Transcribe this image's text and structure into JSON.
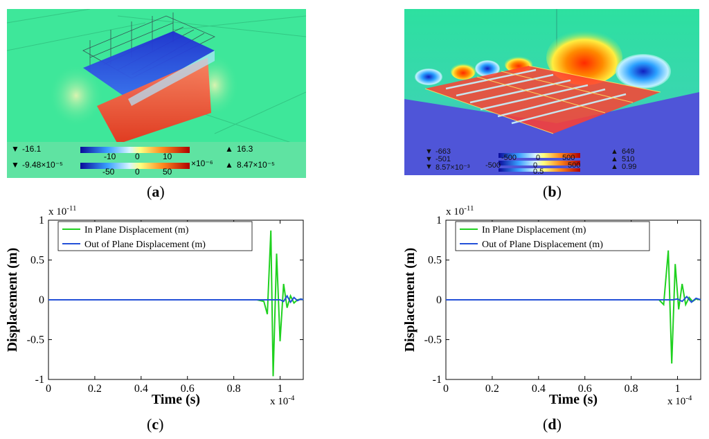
{
  "captions": {
    "a": "a",
    "b": "b",
    "c": "c",
    "d": "d"
  },
  "panel_a": {
    "legend_row1": {
      "min": "-16.1",
      "ticks": [
        "-10",
        "0",
        "10"
      ],
      "max": "16.3"
    },
    "legend_row2": {
      "min": "-9.48×10⁻⁵",
      "ticks": [
        "-50",
        "0",
        "50"
      ],
      "scale": "×10⁻⁶",
      "max": "8.47×10⁻⁵"
    }
  },
  "panel_b": {
    "legend_row1": {
      "min": "-663",
      "ticks": [
        "-500",
        "0",
        "500"
      ],
      "max": "649"
    },
    "legend_row2": {
      "min": "-501",
      "ticks": [
        "-500",
        "0",
        "500"
      ],
      "max": "510"
    },
    "legend_row3": {
      "min": "8.57×10⁻³",
      "ticks": [
        "0.5"
      ],
      "max": "0.99"
    }
  },
  "colors": {
    "in_plane": "#1fd11f",
    "out_of_plane": "#2350d8",
    "field_bg": "#3ee79a"
  },
  "chart_data": [
    {
      "id": "c",
      "type": "line",
      "title": "",
      "xlabel": "Time (s)",
      "ylabel": "Displacement (m)",
      "x_exponent": "x 10",
      "x_exponent_power": "-4",
      "y_exponent": "x 10",
      "y_exponent_power": "-11",
      "xlim": [
        0,
        1.1
      ],
      "ylim": [
        -1,
        1
      ],
      "xticks": [
        0,
        0.2,
        0.4,
        0.6,
        0.8,
        1
      ],
      "xtick_labels": [
        "0",
        "0.2",
        "0.4",
        "0.6",
        "0.8",
        "1"
      ],
      "yticks": [
        -1,
        -0.5,
        0,
        0.5,
        1
      ],
      "ytick_labels": [
        "-1",
        "-0.5",
        "0",
        "0.5",
        "1"
      ],
      "legend_position": "top-left",
      "series": [
        {
          "name": "In Plane Displacement (m)",
          "color_key": "in_plane",
          "x": [
            0,
            0.9,
            0.93,
            0.945,
            0.96,
            0.97,
            0.985,
            1.0,
            1.015,
            1.03,
            1.045,
            1.06,
            1.075,
            1.09,
            1.1
          ],
          "y": [
            0,
            0,
            -0.02,
            -0.18,
            0.87,
            -0.96,
            0.58,
            -0.52,
            0.2,
            -0.1,
            0.05,
            -0.04,
            0.0,
            0.01,
            0.0
          ]
        },
        {
          "name": "Out of Plane Displacement (m)",
          "color_key": "out_of_plane",
          "x": [
            0,
            1.0,
            1.015,
            1.03,
            1.045,
            1.06,
            1.075,
            1.09,
            1.1
          ],
          "y": [
            0,
            0,
            -0.02,
            0.05,
            -0.03,
            0.03,
            -0.01,
            0.01,
            0.0
          ]
        }
      ]
    },
    {
      "id": "d",
      "type": "line",
      "title": "",
      "xlabel": "Time (s)",
      "ylabel": "Displacement (m)",
      "x_exponent": "x 10",
      "x_exponent_power": "-4",
      "y_exponent": "x 10",
      "y_exponent_power": "-11",
      "xlim": [
        0,
        1.1
      ],
      "ylim": [
        -1,
        1
      ],
      "xticks": [
        0,
        0.2,
        0.4,
        0.6,
        0.8,
        1
      ],
      "xtick_labels": [
        "0",
        "0.2",
        "0.4",
        "0.6",
        "0.8",
        "1"
      ],
      "yticks": [
        -1,
        -0.5,
        0,
        0.5,
        1
      ],
      "ytick_labels": [
        "-1",
        "-0.5",
        "0",
        "0.5",
        "1"
      ],
      "legend_position": "top-left",
      "series": [
        {
          "name": "In Plane Displacement (m)",
          "color_key": "in_plane",
          "x": [
            0,
            0.92,
            0.94,
            0.96,
            0.975,
            0.99,
            1.005,
            1.02,
            1.035,
            1.05,
            1.065,
            1.08,
            1.1
          ],
          "y": [
            0,
            0,
            -0.06,
            0.62,
            -0.8,
            0.45,
            -0.12,
            0.2,
            -0.06,
            0.03,
            -0.02,
            0.01,
            0.0
          ]
        },
        {
          "name": "Out of Plane Displacement (m)",
          "color_key": "out_of_plane",
          "x": [
            0,
            0.98,
            1.0,
            1.02,
            1.04,
            1.06,
            1.08,
            1.1
          ],
          "y": [
            0,
            0,
            0.01,
            -0.02,
            0.04,
            -0.03,
            0.02,
            0.0
          ]
        }
      ]
    }
  ]
}
